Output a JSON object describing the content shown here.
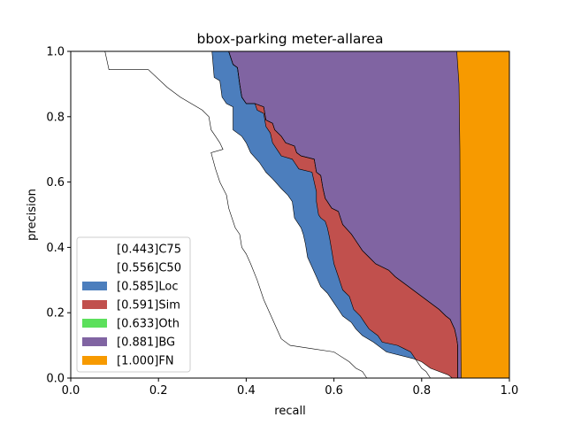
{
  "chart_data": {
    "type": "area",
    "title": "bbox-parking meter-allarea",
    "xlabel": "recall",
    "ylabel": "precision",
    "xlim": [
      0,
      1
    ],
    "ylim": [
      0,
      1
    ],
    "xticks": [
      "0.0",
      "0.2",
      "0.4",
      "0.6",
      "0.8",
      "1.0"
    ],
    "yticks": [
      "0.0",
      "0.2",
      "0.4",
      "0.6",
      "0.8",
      "1.0"
    ],
    "grid": false,
    "legend_position": "lower-left",
    "series": [
      {
        "name": "[0.443]C75",
        "color": "#ffffff",
        "points": [
          [
            0.0,
            1.0
          ],
          [
            0.078,
            1.0
          ],
          [
            0.087,
            0.944
          ],
          [
            0.177,
            0.944
          ],
          [
            0.22,
            0.89
          ],
          [
            0.25,
            0.86
          ],
          [
            0.3,
            0.82
          ],
          [
            0.315,
            0.8
          ],
          [
            0.32,
            0.76
          ],
          [
            0.33,
            0.74
          ],
          [
            0.34,
            0.72
          ],
          [
            0.347,
            0.7
          ],
          [
            0.32,
            0.69
          ],
          [
            0.33,
            0.64
          ],
          [
            0.34,
            0.6
          ],
          [
            0.355,
            0.56
          ],
          [
            0.36,
            0.52
          ],
          [
            0.375,
            0.46
          ],
          [
            0.385,
            0.44
          ],
          [
            0.39,
            0.4
          ],
          [
            0.4,
            0.38
          ],
          [
            0.41,
            0.35
          ],
          [
            0.425,
            0.3
          ],
          [
            0.44,
            0.24
          ],
          [
            0.45,
            0.21
          ],
          [
            0.46,
            0.18
          ],
          [
            0.47,
            0.15
          ],
          [
            0.48,
            0.12
          ],
          [
            0.5,
            0.1
          ],
          [
            0.55,
            0.09
          ],
          [
            0.6,
            0.08
          ],
          [
            0.635,
            0.05
          ],
          [
            0.65,
            0.03
          ],
          [
            0.665,
            0.02
          ],
          [
            0.675,
            0.0
          ]
        ]
      },
      {
        "name": "[0.556]C50",
        "color": "#ffffff",
        "points": [
          [
            0.0,
            1.0
          ],
          [
            0.322,
            1.0
          ],
          [
            0.327,
            0.92
          ],
          [
            0.34,
            0.91
          ],
          [
            0.345,
            0.86
          ],
          [
            0.355,
            0.84
          ],
          [
            0.37,
            0.83
          ],
          [
            0.37,
            0.76
          ],
          [
            0.39,
            0.74
          ],
          [
            0.4,
            0.72
          ],
          [
            0.41,
            0.69
          ],
          [
            0.43,
            0.66
          ],
          [
            0.445,
            0.63
          ],
          [
            0.46,
            0.61
          ],
          [
            0.48,
            0.58
          ],
          [
            0.495,
            0.56
          ],
          [
            0.505,
            0.54
          ],
          [
            0.51,
            0.49
          ],
          [
            0.52,
            0.47
          ],
          [
            0.525,
            0.46
          ],
          [
            0.53,
            0.44
          ],
          [
            0.535,
            0.41
          ],
          [
            0.54,
            0.37
          ],
          [
            0.55,
            0.34
          ],
          [
            0.56,
            0.31
          ],
          [
            0.57,
            0.28
          ],
          [
            0.585,
            0.26
          ],
          [
            0.6,
            0.23
          ],
          [
            0.61,
            0.21
          ],
          [
            0.62,
            0.19
          ],
          [
            0.64,
            0.17
          ],
          [
            0.65,
            0.15
          ],
          [
            0.665,
            0.13
          ],
          [
            0.69,
            0.11
          ],
          [
            0.72,
            0.08
          ],
          [
            0.78,
            0.06
          ],
          [
            0.8,
            0.05
          ],
          [
            0.82,
            0.03
          ],
          [
            0.84,
            0.02
          ],
          [
            0.86,
            0.01
          ],
          [
            0.87,
            0.0
          ]
        ]
      },
      {
        "name": "[0.585]Loc",
        "color": "#4c7ebd",
        "points": [
          [
            0.0,
            1.0
          ],
          [
            0.36,
            1.0
          ],
          [
            0.37,
            0.96
          ],
          [
            0.38,
            0.95
          ],
          [
            0.385,
            0.9
          ],
          [
            0.39,
            0.86
          ],
          [
            0.4,
            0.84
          ],
          [
            0.42,
            0.84
          ],
          [
            0.425,
            0.82
          ],
          [
            0.44,
            0.81
          ],
          [
            0.445,
            0.77
          ],
          [
            0.455,
            0.75
          ],
          [
            0.46,
            0.72
          ],
          [
            0.47,
            0.7
          ],
          [
            0.48,
            0.68
          ],
          [
            0.505,
            0.67
          ],
          [
            0.51,
            0.66
          ],
          [
            0.52,
            0.64
          ],
          [
            0.55,
            0.63
          ],
          [
            0.555,
            0.6
          ],
          [
            0.56,
            0.57
          ],
          [
            0.56,
            0.54
          ],
          [
            0.565,
            0.5
          ],
          [
            0.57,
            0.49
          ],
          [
            0.58,
            0.48
          ],
          [
            0.585,
            0.46
          ],
          [
            0.59,
            0.43
          ],
          [
            0.595,
            0.39
          ],
          [
            0.6,
            0.35
          ],
          [
            0.61,
            0.31
          ],
          [
            0.615,
            0.29
          ],
          [
            0.62,
            0.27
          ],
          [
            0.635,
            0.25
          ],
          [
            0.645,
            0.21
          ],
          [
            0.66,
            0.19
          ],
          [
            0.67,
            0.17
          ],
          [
            0.68,
            0.15
          ],
          [
            0.7,
            0.13
          ],
          [
            0.71,
            0.11
          ],
          [
            0.745,
            0.1
          ],
          [
            0.76,
            0.09
          ],
          [
            0.775,
            0.08
          ],
          [
            0.785,
            0.06
          ],
          [
            0.79,
            0.05
          ],
          [
            0.8,
            0.03
          ],
          [
            0.81,
            0.02
          ],
          [
            0.815,
            0.01
          ],
          [
            0.82,
            0.0
          ]
        ]
      },
      {
        "name": "[0.591]Sim",
        "color": "#c1504d",
        "points": [
          [
            0.0,
            1.0
          ],
          [
            0.36,
            1.0
          ],
          [
            0.37,
            0.96
          ],
          [
            0.38,
            0.95
          ],
          [
            0.385,
            0.9
          ],
          [
            0.39,
            0.86
          ],
          [
            0.4,
            0.84
          ],
          [
            0.42,
            0.84
          ],
          [
            0.44,
            0.83
          ],
          [
            0.445,
            0.79
          ],
          [
            0.46,
            0.78
          ],
          [
            0.465,
            0.76
          ],
          [
            0.48,
            0.74
          ],
          [
            0.49,
            0.72
          ],
          [
            0.51,
            0.71
          ],
          [
            0.515,
            0.69
          ],
          [
            0.525,
            0.68
          ],
          [
            0.555,
            0.67
          ],
          [
            0.56,
            0.63
          ],
          [
            0.57,
            0.62
          ],
          [
            0.575,
            0.58
          ],
          [
            0.58,
            0.55
          ],
          [
            0.585,
            0.54
          ],
          [
            0.59,
            0.53
          ],
          [
            0.595,
            0.52
          ],
          [
            0.61,
            0.51
          ],
          [
            0.615,
            0.49
          ],
          [
            0.62,
            0.47
          ],
          [
            0.64,
            0.44
          ],
          [
            0.65,
            0.42
          ],
          [
            0.665,
            0.39
          ],
          [
            0.68,
            0.37
          ],
          [
            0.695,
            0.35
          ],
          [
            0.725,
            0.33
          ],
          [
            0.74,
            0.31
          ],
          [
            0.76,
            0.29
          ],
          [
            0.78,
            0.27
          ],
          [
            0.8,
            0.25
          ],
          [
            0.82,
            0.23
          ],
          [
            0.84,
            0.21
          ],
          [
            0.855,
            0.19
          ],
          [
            0.865,
            0.18
          ],
          [
            0.875,
            0.15
          ],
          [
            0.88,
            0.12
          ],
          [
            0.882,
            0.1
          ],
          [
            0.882,
            0.0
          ]
        ]
      },
      {
        "name": "[0.633]Oth",
        "color": "#5ce05c",
        "points": [
          [
            0.0,
            1.0
          ],
          [
            0.36,
            1.0
          ],
          [
            0.37,
            0.96
          ],
          [
            0.38,
            0.95
          ],
          [
            0.385,
            0.9
          ],
          [
            0.39,
            0.86
          ],
          [
            0.4,
            0.84
          ],
          [
            0.42,
            0.84
          ],
          [
            0.44,
            0.83
          ],
          [
            0.445,
            0.79
          ],
          [
            0.46,
            0.78
          ],
          [
            0.465,
            0.76
          ],
          [
            0.48,
            0.74
          ],
          [
            0.49,
            0.72
          ],
          [
            0.51,
            0.71
          ],
          [
            0.515,
            0.69
          ],
          [
            0.525,
            0.68
          ],
          [
            0.555,
            0.67
          ],
          [
            0.56,
            0.63
          ],
          [
            0.57,
            0.62
          ],
          [
            0.575,
            0.58
          ],
          [
            0.58,
            0.55
          ],
          [
            0.585,
            0.54
          ],
          [
            0.59,
            0.53
          ],
          [
            0.595,
            0.52
          ],
          [
            0.61,
            0.51
          ],
          [
            0.615,
            0.49
          ],
          [
            0.62,
            0.47
          ],
          [
            0.64,
            0.44
          ],
          [
            0.65,
            0.42
          ],
          [
            0.665,
            0.39
          ],
          [
            0.68,
            0.37
          ],
          [
            0.695,
            0.35
          ],
          [
            0.725,
            0.33
          ],
          [
            0.74,
            0.31
          ],
          [
            0.76,
            0.29
          ],
          [
            0.78,
            0.27
          ],
          [
            0.8,
            0.25
          ],
          [
            0.82,
            0.23
          ],
          [
            0.84,
            0.21
          ],
          [
            0.855,
            0.19
          ],
          [
            0.865,
            0.18
          ],
          [
            0.875,
            0.15
          ],
          [
            0.88,
            0.12
          ],
          [
            0.882,
            0.1
          ],
          [
            0.882,
            0.0
          ]
        ]
      },
      {
        "name": "[0.881]BG",
        "color": "#8064a2",
        "points": [
          [
            0.0,
            1.0
          ],
          [
            0.88,
            1.0
          ],
          [
            0.885,
            0.9
          ],
          [
            0.887,
            0.7
          ],
          [
            0.888,
            0.4
          ],
          [
            0.889,
            0.2
          ],
          [
            0.89,
            0.0
          ]
        ]
      },
      {
        "name": "[1.000]FN",
        "color": "#f79a00",
        "points": [
          [
            0.0,
            1.0
          ],
          [
            1.0,
            1.0
          ],
          [
            1.0,
            0.0
          ]
        ]
      }
    ]
  }
}
